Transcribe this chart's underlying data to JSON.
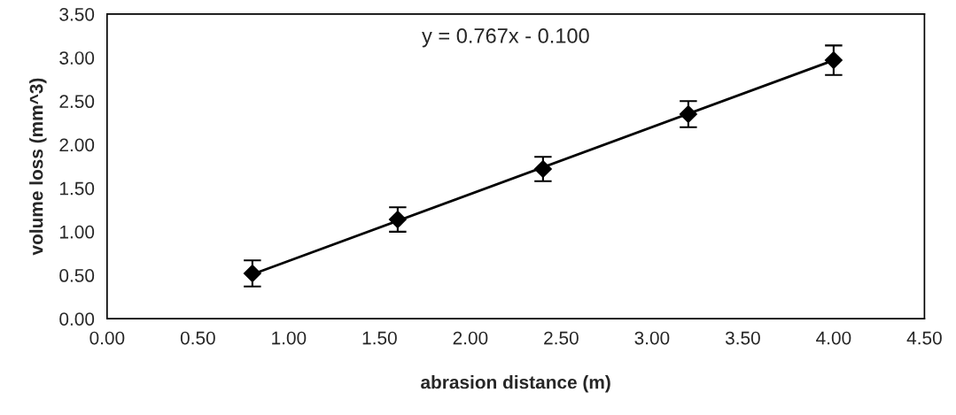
{
  "chart_data": {
    "type": "scatter",
    "xlabel": "abrasion distance (m)",
    "ylabel": "volume loss (mm^3)",
    "series": [
      {
        "color": "#000000",
        "marker": "diamond",
        "x": [
          0.8,
          1.6,
          2.4,
          3.2,
          4.0
        ],
        "values": [
          0.52,
          1.14,
          1.72,
          2.35,
          2.97
        ],
        "errors": [
          0.15,
          0.14,
          0.14,
          0.15,
          0.17
        ]
      },
      {
        "type": "line",
        "color": "#000000",
        "marker": "none",
        "line_style": "solid",
        "x": [
          0.8,
          4.0
        ],
        "values": [
          0.51,
          2.97
        ]
      }
    ],
    "annotations": [
      "y = 0.767x - 0.100"
    ],
    "xlim": [
      0,
      4.5
    ],
    "xticks": [
      {
        "value": 0,
        "label": "0.00"
      },
      {
        "value": 0.5,
        "label": "0.50"
      },
      {
        "value": 1,
        "label": "1.00"
      },
      {
        "value": 1.5,
        "label": "1.50"
      },
      {
        "value": 2,
        "label": "2.00"
      },
      {
        "value": 2.5,
        "label": "2.50"
      },
      {
        "value": 3,
        "label": "3.00"
      },
      {
        "value": 3.5,
        "label": "3.50"
      },
      {
        "value": 4,
        "label": "4.00"
      },
      {
        "value": 4.5,
        "label": "4.50"
      }
    ],
    "ylim": [
      0,
      3.5
    ],
    "yticks": [
      {
        "value": 0,
        "label": "0.00"
      },
      {
        "value": 0.5,
        "label": "0.50"
      },
      {
        "value": 1,
        "label": "1.00"
      },
      {
        "value": 1.5,
        "label": "1.50"
      },
      {
        "value": 2,
        "label": "2.00"
      },
      {
        "value": 2.5,
        "label": "2.50"
      },
      {
        "value": 3,
        "label": "3.00"
      },
      {
        "value": 3.5,
        "label": "3.50"
      }
    ],
    "grid": false,
    "legend": false
  }
}
